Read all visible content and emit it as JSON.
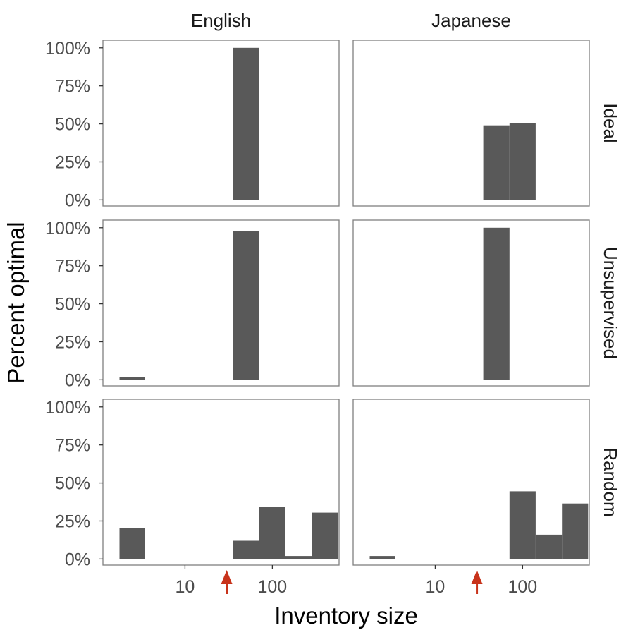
{
  "chart_data": {
    "type": "bar",
    "facet_columns": [
      "English",
      "Japanese"
    ],
    "facet_rows": [
      "Ideal",
      "Unsupervised",
      "Random"
    ],
    "xlabel": "Inventory size",
    "ylabel": "Percent optimal",
    "x_scale": "log10",
    "xlim": [
      1.15,
      580
    ],
    "x_ticks": [
      10,
      100
    ],
    "x_tick_labels": [
      "10",
      "100"
    ],
    "y_ticks": [
      0,
      25,
      50,
      75,
      100
    ],
    "y_tick_labels": [
      "0%",
      "25%",
      "50%",
      "75%",
      "100%"
    ],
    "ylim": [
      -4,
      105
    ],
    "grid": false,
    "bin_edges": [
      1.78,
      3.5,
      17.8,
      35.5,
      70.8,
      141,
      282,
      562
    ],
    "markers": [
      {
        "column": "English",
        "x": 30,
        "color": "#c8331b"
      },
      {
        "column": "Japanese",
        "x": 30,
        "color": "#c8331b"
      }
    ],
    "panels": [
      {
        "row": "Ideal",
        "column": "English",
        "bars": [
          {
            "x0": 35.5,
            "x1": 70.8,
            "value": 100
          }
        ]
      },
      {
        "row": "Ideal",
        "column": "Japanese",
        "bars": [
          {
            "x0": 35.5,
            "x1": 70.8,
            "value": 49
          },
          {
            "x0": 70.8,
            "x1": 141,
            "value": 50.5
          }
        ]
      },
      {
        "row": "Unsupervised",
        "column": "English",
        "bars": [
          {
            "x0": 1.78,
            "x1": 3.5,
            "value": 2
          },
          {
            "x0": 35.5,
            "x1": 70.8,
            "value": 98
          }
        ]
      },
      {
        "row": "Unsupervised",
        "column": "Japanese",
        "bars": [
          {
            "x0": 35.5,
            "x1": 70.8,
            "value": 100
          }
        ]
      },
      {
        "row": "Random",
        "column": "English",
        "bars": [
          {
            "x0": 1.78,
            "x1": 3.5,
            "value": 20.5
          },
          {
            "x0": 35.5,
            "x1": 70.8,
            "value": 12
          },
          {
            "x0": 70.8,
            "x1": 141,
            "value": 34.5
          },
          {
            "x0": 141,
            "x1": 282,
            "value": 2
          },
          {
            "x0": 282,
            "x1": 562,
            "value": 30.5
          }
        ]
      },
      {
        "row": "Random",
        "column": "Japanese",
        "bars": [
          {
            "x0": 1.78,
            "x1": 3.5,
            "value": 2
          },
          {
            "x0": 70.8,
            "x1": 141,
            "value": 44.5
          },
          {
            "x0": 141,
            "x1": 282,
            "value": 16
          },
          {
            "x0": 282,
            "x1": 562,
            "value": 36.5
          }
        ]
      }
    ],
    "colors": {
      "bar": "#595959",
      "panel_border": "#7f7f7f",
      "marker": "#c8331b"
    }
  }
}
